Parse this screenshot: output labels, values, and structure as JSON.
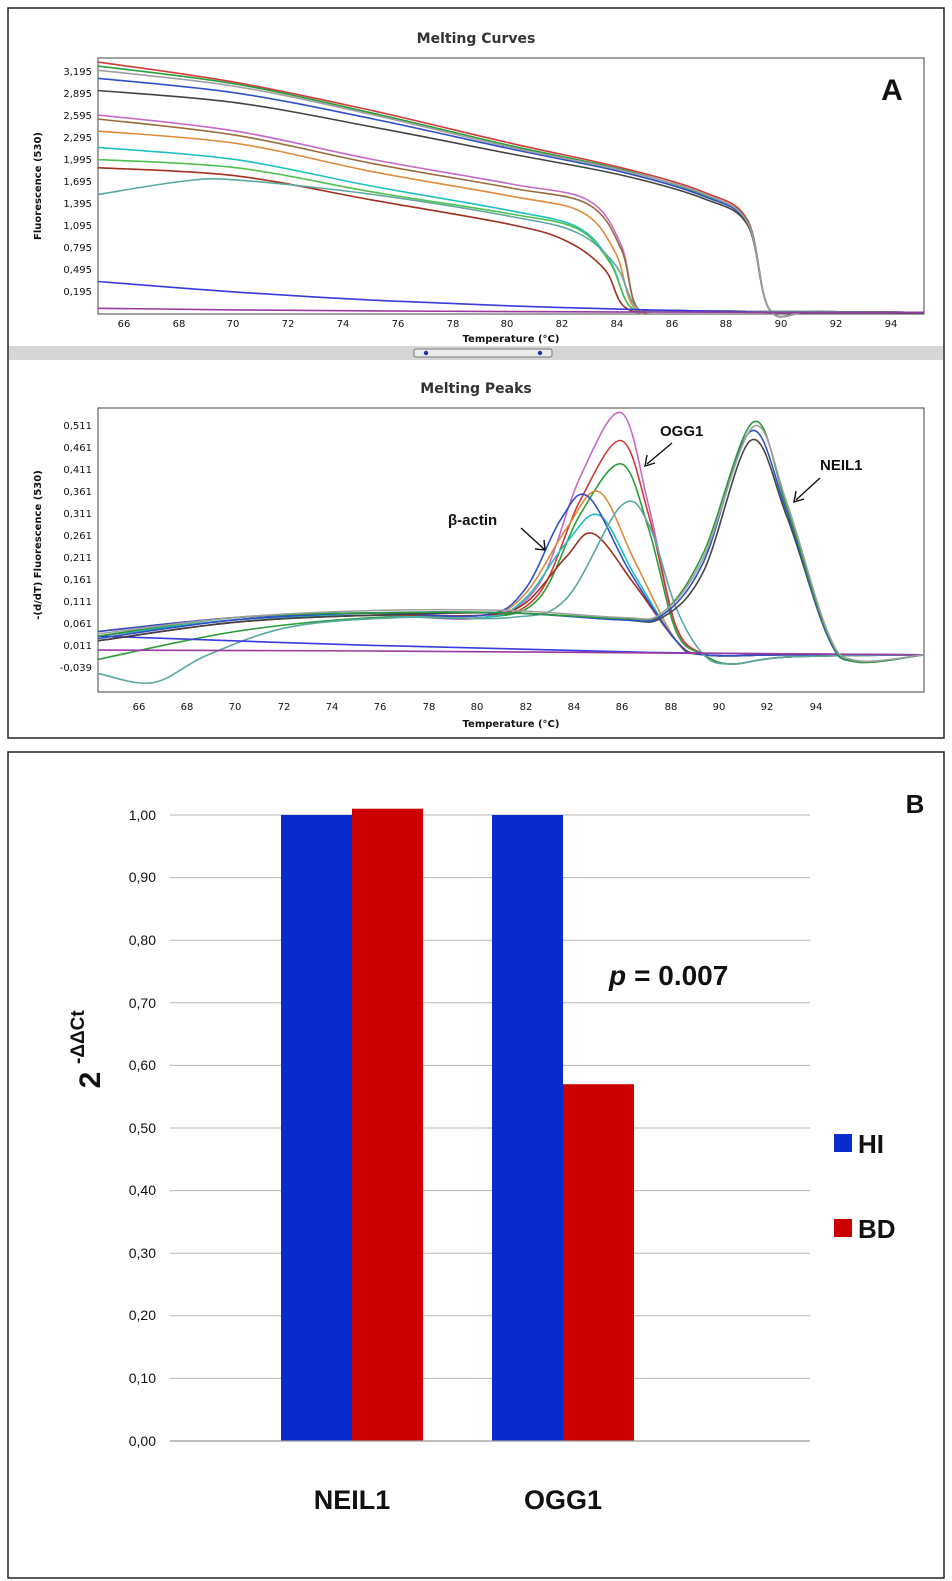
{
  "panel_a": {
    "label": "A",
    "curves": {
      "title": "Melting Curves",
      "ylabel": "Fluorescence (530)",
      "xlabel": "Temperature (°C)",
      "yticks": [
        "3,195",
        "2,895",
        "2,595",
        "2,295",
        "1,995",
        "1,695",
        "1,395",
        "1,095",
        "0,795",
        "0,495",
        "0,195"
      ],
      "xticks": [
        "66",
        "68",
        "70",
        "72",
        "74",
        "76",
        "78",
        "80",
        "82",
        "84",
        "86",
        "88",
        "90",
        "92",
        "94"
      ]
    },
    "peaks": {
      "title": "Melting Peaks",
      "ylabel": "-(d/dT) Fluorescence (530)",
      "xlabel": "Temperature (°C)",
      "yticks": [
        "0,511",
        "0,461",
        "0,411",
        "0,361",
        "0,311",
        "0,261",
        "0,211",
        "0,161",
        "0,111",
        "0,061",
        "0,011",
        "-0,039"
      ],
      "xticks": [
        "66",
        "68",
        "70",
        "72",
        "74",
        "76",
        "78",
        "80",
        "82",
        "84",
        "86",
        "88",
        "90",
        "92",
        "94"
      ],
      "annotations": [
        "OGG1",
        "NEIL1",
        "β-actin"
      ]
    }
  },
  "panel_b": {
    "label": "B",
    "annotation_prefix": "p",
    "annotation_value": "= 0.007"
  },
  "chart_data": [
    {
      "type": "line",
      "title": "Melting Curves",
      "xlabel": "Temperature (°C)",
      "ylabel": "Fluorescence (530)",
      "xlim": [
        65,
        95
      ],
      "ylim": [
        0.15,
        3.3
      ],
      "series": [
        {
          "color": "#d23a3a",
          "x": [
            65,
            70,
            75,
            80,
            84,
            87,
            88.6,
            89.4,
            91,
            95
          ],
          "y": [
            3.25,
            3.0,
            2.65,
            2.25,
            1.95,
            1.65,
            1.3,
            0.2,
            0.18,
            0.17
          ]
        },
        {
          "color": "#2a9d3a",
          "x": [
            65,
            70,
            75,
            80,
            84,
            87,
            88.6,
            89.4,
            91,
            95
          ],
          "y": [
            3.2,
            2.98,
            2.62,
            2.22,
            1.93,
            1.62,
            1.28,
            0.2,
            0.18,
            0.17
          ]
        },
        {
          "color": "#3050c8",
          "x": [
            65,
            70,
            75,
            80,
            84,
            87,
            88.6,
            89.4,
            91,
            95
          ],
          "y": [
            3.05,
            2.87,
            2.55,
            2.18,
            1.9,
            1.6,
            1.26,
            0.2,
            0.18,
            0.17
          ]
        },
        {
          "color": "#444444",
          "x": [
            65,
            70,
            75,
            80,
            84,
            87,
            88.6,
            89.4,
            91,
            95
          ],
          "y": [
            2.9,
            2.75,
            2.45,
            2.12,
            1.86,
            1.57,
            1.24,
            0.2,
            0.18,
            0.17
          ]
        },
        {
          "color": "#a0a0a0",
          "x": [
            65,
            70,
            75,
            80,
            84,
            87,
            88.6,
            89.4,
            91,
            95
          ],
          "y": [
            3.15,
            2.95,
            2.6,
            2.2,
            1.92,
            1.63,
            1.27,
            0.2,
            0.18,
            0.17
          ]
        },
        {
          "color": "#c86ac8",
          "x": [
            65,
            70,
            75,
            80,
            82.8,
            84,
            84.6,
            86,
            95
          ],
          "y": [
            2.6,
            2.4,
            2.05,
            1.75,
            1.55,
            1.0,
            0.22,
            0.19,
            0.17
          ]
        },
        {
          "color": "#9a6a3a",
          "x": [
            65,
            70,
            75,
            80,
            82.8,
            84,
            84.6,
            86,
            95
          ],
          "y": [
            2.55,
            2.35,
            2.0,
            1.7,
            1.5,
            0.95,
            0.22,
            0.19,
            0.17
          ]
        },
        {
          "color": "#e08a3a",
          "x": [
            65,
            70,
            75,
            80,
            82.6,
            83.8,
            84.5,
            86,
            95
          ],
          "y": [
            2.4,
            2.25,
            1.9,
            1.6,
            1.4,
            0.9,
            0.22,
            0.19,
            0.17
          ]
        },
        {
          "color": "#20c0c0",
          "x": [
            65,
            70,
            75,
            80,
            82.4,
            83.6,
            84.4,
            86,
            95
          ],
          "y": [
            2.2,
            2.05,
            1.72,
            1.42,
            1.22,
            0.8,
            0.22,
            0.19,
            0.17
          ]
        },
        {
          "color": "#50c050",
          "x": [
            65,
            70,
            75,
            80,
            82.4,
            83.6,
            84.4,
            86,
            95
          ],
          "y": [
            2.05,
            1.95,
            1.65,
            1.38,
            1.2,
            0.78,
            0.22,
            0.19,
            0.17
          ]
        },
        {
          "color": "#a03020",
          "x": [
            65,
            70,
            75,
            80,
            82,
            83.4,
            84.2,
            86,
            95
          ],
          "y": [
            1.95,
            1.85,
            1.55,
            1.25,
            1.05,
            0.7,
            0.22,
            0.19,
            0.17
          ]
        },
        {
          "color": "#5aa8a0",
          "x": [
            65,
            68,
            70,
            75,
            80,
            82.4,
            83.8,
            84.6,
            86,
            95
          ],
          "y": [
            1.62,
            1.78,
            1.8,
            1.62,
            1.35,
            1.15,
            0.75,
            0.22,
            0.19,
            0.17
          ]
        },
        {
          "color": "#3a3ae0",
          "x": [
            65,
            70,
            75,
            80,
            85,
            88,
            90,
            95
          ],
          "y": [
            0.55,
            0.42,
            0.32,
            0.25,
            0.2,
            0.18,
            0.17,
            0.17
          ]
        },
        {
          "color": "#9a3aa0",
          "x": [
            65,
            70,
            80,
            90,
            95
          ],
          "y": [
            0.22,
            0.2,
            0.18,
            0.17,
            0.17
          ]
        }
      ]
    },
    {
      "type": "line",
      "title": "Melting Peaks",
      "xlabel": "Temperature (°C)",
      "ylabel": "-(d/dT) Fluorescence (530)",
      "xlim": [
        65,
        95
      ],
      "ylim": [
        -0.08,
        0.53
      ],
      "series": [
        {
          "color": "#c86ac8",
          "x": [
            65,
            70,
            75,
            79,
            81,
            82.5,
            84,
            85,
            86,
            87,
            88,
            90,
            95
          ],
          "y": [
            0.03,
            0.07,
            0.085,
            0.08,
            0.15,
            0.38,
            0.52,
            0.32,
            0.06,
            0.0,
            -0.02,
            -0.005,
            0.0
          ]
        },
        {
          "color": "#d23a3a",
          "x": [
            65,
            70,
            75,
            79,
            81,
            82.5,
            84,
            85,
            86,
            87,
            88,
            90,
            95
          ],
          "y": [
            0.04,
            0.075,
            0.09,
            0.08,
            0.13,
            0.33,
            0.46,
            0.3,
            0.06,
            0.0,
            -0.02,
            -0.005,
            0.0
          ]
        },
        {
          "color": "#2a9d3a",
          "x": [
            65,
            70,
            75,
            79,
            81,
            82.5,
            84,
            85,
            86,
            87,
            88,
            90,
            95
          ],
          "y": [
            -0.01,
            0.05,
            0.08,
            0.08,
            0.12,
            0.3,
            0.41,
            0.27,
            0.05,
            0.0,
            -0.02,
            -0.005,
            0.0
          ]
        },
        {
          "color": "#e08a3a",
          "x": [
            65,
            70,
            75,
            79,
            80.5,
            82,
            83.2,
            84.5,
            86,
            87,
            90,
            95
          ],
          "y": [
            0.05,
            0.08,
            0.09,
            0.085,
            0.13,
            0.27,
            0.35,
            0.2,
            0.03,
            0.0,
            0.0,
            0.0
          ]
        },
        {
          "color": "#20c0c0",
          "x": [
            65,
            70,
            75,
            79,
            80.5,
            82,
            83.2,
            84.5,
            86,
            87,
            90,
            95
          ],
          "y": [
            0.04,
            0.075,
            0.085,
            0.08,
            0.12,
            0.24,
            0.3,
            0.17,
            0.03,
            0.0,
            0.0,
            0.0
          ]
        },
        {
          "color": "#a03020",
          "x": [
            65,
            70,
            75,
            79,
            80.5,
            82,
            83,
            84.5,
            86,
            87,
            90,
            95
          ],
          "y": [
            0.03,
            0.07,
            0.085,
            0.085,
            0.11,
            0.21,
            0.26,
            0.15,
            0.03,
            0.0,
            0.0,
            0.0
          ]
        },
        {
          "color": "#3050c8",
          "x": [
            65,
            70,
            75,
            79,
            80.5,
            81.8,
            82.8,
            84.3,
            86,
            87,
            90,
            95
          ],
          "y": [
            0.05,
            0.08,
            0.09,
            0.085,
            0.14,
            0.29,
            0.34,
            0.18,
            0.03,
            0.0,
            0.0,
            0.0
          ]
        },
        {
          "color": "#5aa8a0",
          "x": [
            65,
            67,
            69,
            72,
            76,
            80,
            82,
            84,
            85,
            86,
            87,
            88,
            90,
            95
          ],
          "y": [
            -0.04,
            -0.06,
            0.0,
            0.06,
            0.08,
            0.08,
            0.12,
            0.32,
            0.28,
            0.1,
            0.0,
            -0.02,
            -0.005,
            0.0
          ]
        },
        {
          "color": "#3a3ae0",
          "x": [
            65,
            75,
            85,
            95
          ],
          "y": [
            0.04,
            0.02,
            0.005,
            0.0
          ]
        },
        {
          "color": "#9a3aa0",
          "x": [
            65,
            75,
            85,
            95
          ],
          "y": [
            0.01,
            0.008,
            0.004,
            0.0
          ]
        },
        {
          "color": "#444444",
          "x": [
            65,
            70,
            75,
            80,
            84,
            85.5,
            87,
            88.7,
            90,
            91.5,
            92.5,
            95
          ],
          "y": [
            0.03,
            0.07,
            0.085,
            0.09,
            0.075,
            0.08,
            0.18,
            0.46,
            0.3,
            0.04,
            -0.015,
            0.0
          ]
        },
        {
          "color": "#3050c8",
          "x": [
            65,
            70,
            75,
            80,
            84,
            85.5,
            87,
            88.7,
            90,
            91.5,
            92.5,
            95
          ],
          "y": [
            0.035,
            0.075,
            0.09,
            0.09,
            0.075,
            0.085,
            0.2,
            0.48,
            0.31,
            0.04,
            -0.015,
            0.0
          ]
        },
        {
          "color": "#2a9d3a",
          "x": [
            65,
            70,
            75,
            80,
            84,
            85.5,
            87,
            88.8,
            90,
            91.5,
            92.5,
            95
          ],
          "y": [
            0.04,
            0.08,
            0.09,
            0.09,
            0.078,
            0.09,
            0.22,
            0.5,
            0.32,
            0.045,
            -0.015,
            0.0
          ]
        },
        {
          "color": "#a0a0a0",
          "x": [
            65,
            70,
            75,
            80,
            84,
            85.5,
            87,
            88.8,
            90,
            91.5,
            92.5,
            95
          ],
          "y": [
            0.045,
            0.08,
            0.095,
            0.095,
            0.08,
            0.09,
            0.21,
            0.49,
            0.33,
            0.05,
            -0.012,
            0.0
          ]
        }
      ]
    },
    {
      "type": "bar",
      "categories": [
        "NEIL1",
        "OGG1"
      ],
      "series": [
        {
          "name": "HI",
          "values": [
            1.0,
            1.0
          ],
          "color": "#0a2ccf"
        },
        {
          "name": "BD",
          "values": [
            1.01,
            0.57
          ],
          "color": "#cc0000"
        }
      ],
      "ylabel": "2-ΔΔCt",
      "ylabel_base": "2",
      "ylabel_exp": "-ΔΔCt",
      "yticks": [
        "1,00",
        "0,90",
        "0,80",
        "0,70",
        "0,60",
        "0,50",
        "0,40",
        "0,30",
        "0,20",
        "0,10",
        "0,00"
      ],
      "ylim": [
        0,
        1.0
      ],
      "grid": true,
      "legend": "right"
    }
  ]
}
